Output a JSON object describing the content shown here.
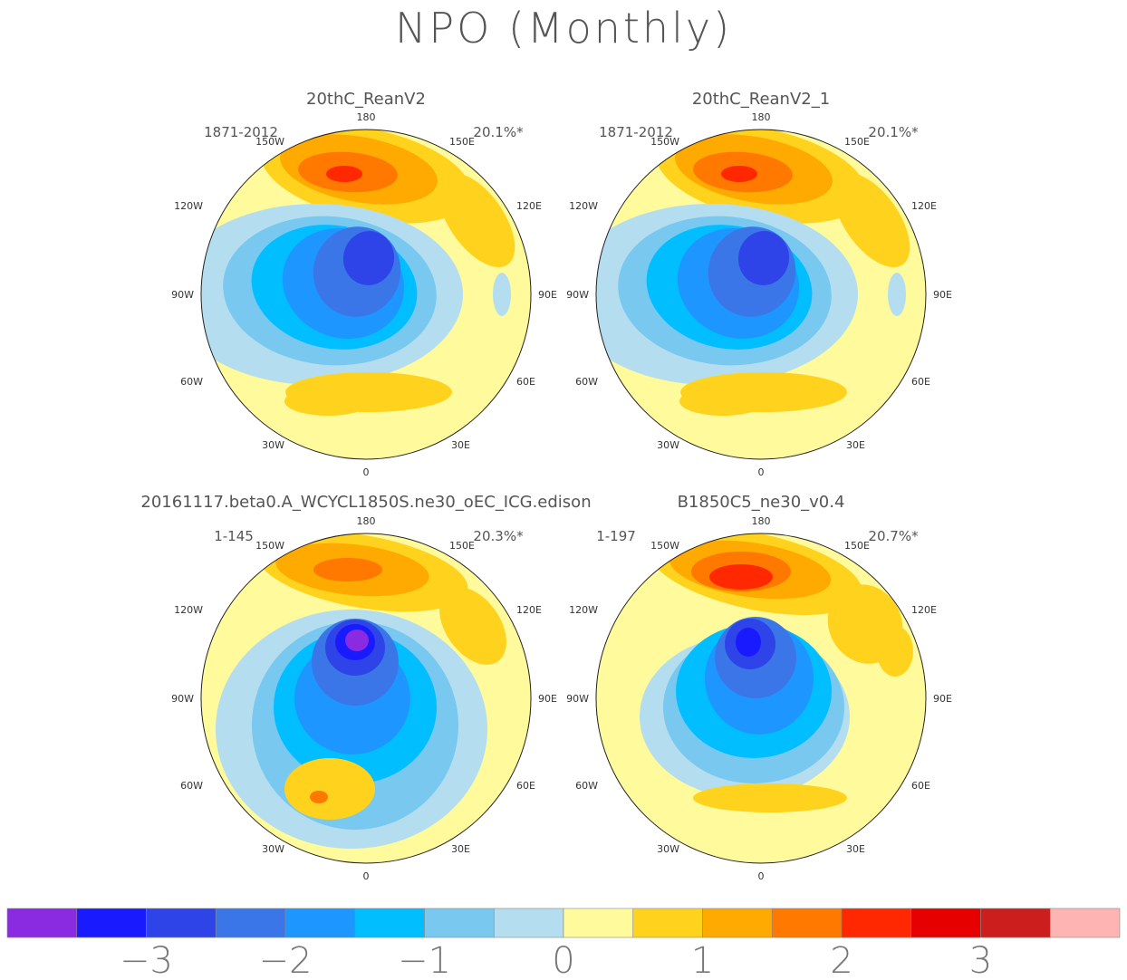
{
  "figure": {
    "title": "NPO (Monthly)"
  },
  "panels": [
    {
      "name": "20thC_ReanV2",
      "period": "1871-2012",
      "variance": "20.1%*",
      "variant": "obs"
    },
    {
      "name": "20thC_ReanV2_1",
      "period": "1871-2012",
      "variance": "20.1%*",
      "variant": "obs"
    },
    {
      "name": "20161117.beta0.A_WCYCL1850S.ne30_oEC_ICG.edison",
      "period": "1-145",
      "variance": "20.3%*",
      "variant": "model_a"
    },
    {
      "name": "B1850C5_ne30_v0.4",
      "period": "1-197",
      "variance": "20.7%*",
      "variant": "model_b"
    }
  ],
  "map_labels": {
    "top": "180",
    "bottom": "0",
    "left": "90W",
    "right": "90E",
    "upper_left_outer": "120W",
    "upper_left_inner": "150W",
    "upper_right_inner": "150E",
    "upper_right_outer": "120E",
    "lower_left_outer": "60W",
    "lower_left_inner": "30W",
    "lower_right_inner": "30E",
    "lower_right_outer": "60E"
  },
  "colorbar": {
    "colors": [
      "#8a2be2",
      "#1a1aff",
      "#2e44e8",
      "#3a76e8",
      "#1e96ff",
      "#00beff",
      "#78c8f0",
      "#b4def0",
      "#fffa9c",
      "#ffd21e",
      "#ffaa00",
      "#ff7800",
      "#ff2800",
      "#e60000",
      "#cd1e1e",
      "#ffb4b4"
    ],
    "tick_labels": [
      "−3",
      "−2",
      "−1",
      "0",
      "1",
      "2",
      "3"
    ]
  }
}
